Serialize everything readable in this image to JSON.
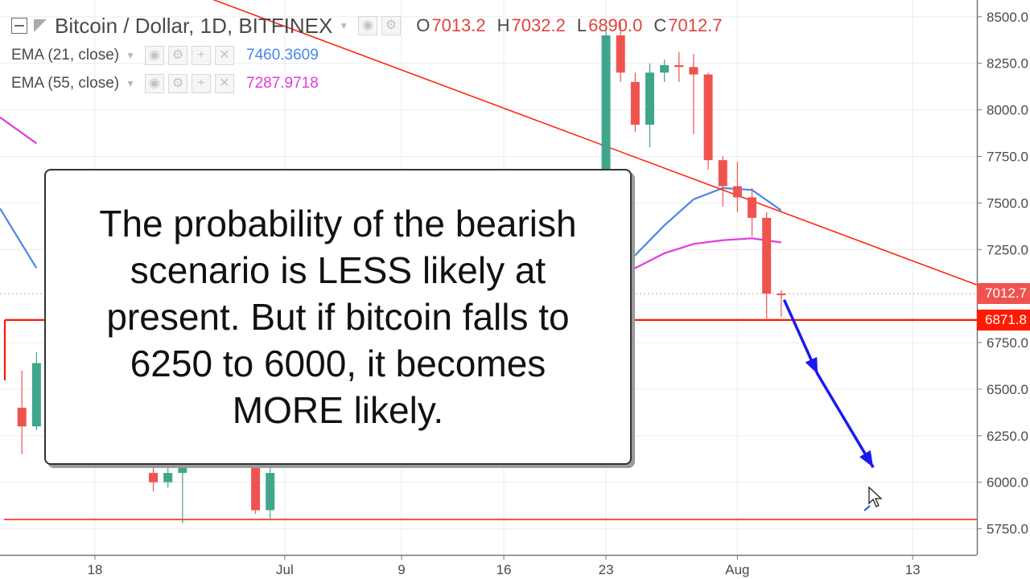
{
  "header": {
    "symbol_title": "Bitcoin / Dollar, 1D, BITFINEX",
    "ohlc": [
      {
        "label": "O",
        "value": "7013.2"
      },
      {
        "label": "H",
        "value": "7032.2"
      },
      {
        "label": "L",
        "value": "6890.0"
      },
      {
        "label": "C",
        "value": "7012.7"
      }
    ],
    "indicators": [
      {
        "name": "EMA (21, close)",
        "value": "7460.3609",
        "color": "#4a86e8"
      },
      {
        "name": "EMA (55, close)",
        "value": "7287.9718",
        "color": "#e23ae0"
      }
    ]
  },
  "callout": {
    "text": "The probability of the bearish scenario is LESS likely at present.  But if bitcoin falls to 6250 to 6000, it becomes MORE likely."
  },
  "price_tags": [
    {
      "text": "7012.7",
      "value": 7012.7,
      "color": "#ef5350"
    },
    {
      "text": "6871.8",
      "value": 6871.8,
      "color": "#ff1a00"
    }
  ],
  "chart_data": {
    "type": "candlestick",
    "y_ticks": [
      {
        "value": 8500,
        "label": "8500.0"
      },
      {
        "value": 8250,
        "label": "8250.0"
      },
      {
        "value": 8000,
        "label": "8000.0"
      },
      {
        "value": 7750,
        "label": "7750.0"
      },
      {
        "value": 7500,
        "label": "7500.0"
      },
      {
        "value": 7250,
        "label": "7250.0"
      },
      {
        "value": 6750,
        "label": "6750.0"
      },
      {
        "value": 6500,
        "label": "6500.0"
      },
      {
        "value": 6250,
        "label": "6250.0"
      },
      {
        "value": 6000,
        "label": "6000.0"
      },
      {
        "value": 5750,
        "label": "5750.0"
      }
    ],
    "x_ticks": [
      {
        "day": 18,
        "label": "18"
      },
      {
        "day": 31,
        "label": "Jul"
      },
      {
        "day": 39,
        "label": "9"
      },
      {
        "day": 46,
        "label": "16"
      },
      {
        "day": 53,
        "label": "23"
      },
      {
        "day": 62,
        "label": "Aug"
      },
      {
        "day": 74,
        "label": "13"
      }
    ],
    "x_axis_note": "day index counted from June 1 (June 18 = 18, July 1 = 31, Aug 1 = 62)",
    "ylim": [
      5610,
      8590
    ],
    "xlim": [
      11.5,
      78.4
    ],
    "colors": {
      "up": "#3fa68b",
      "down": "#ef5350",
      "trendline": "#ff2a14",
      "support": "#ff1a00",
      "forecast_arrow": "#1a1aef",
      "grid": "#ececec"
    },
    "candles": [
      {
        "day": 13,
        "open": 6400,
        "high": 6600,
        "low": 6150,
        "close": 6300
      },
      {
        "day": 14,
        "open": 6300,
        "high": 6700,
        "low": 6280,
        "close": 6640
      },
      {
        "day": 22,
        "open": 6050,
        "high": 6150,
        "low": 5950,
        "close": 6000
      },
      {
        "day": 23,
        "open": 6000,
        "high": 6100,
        "low": 5970,
        "close": 6050
      },
      {
        "day": 24,
        "open": 6050,
        "high": 6150,
        "low": 5780,
        "close": 6080
      },
      {
        "day": 29,
        "open": 6080,
        "high": 6120,
        "low": 5830,
        "close": 5850
      },
      {
        "day": 30,
        "open": 5850,
        "high": 6100,
        "low": 5800,
        "close": 6050
      },
      {
        "day": 53,
        "open": 7400,
        "high": 8450,
        "low": 7350,
        "close": 8400
      },
      {
        "day": 54,
        "open": 8400,
        "high": 8470,
        "low": 8150,
        "close": 8200
      },
      {
        "day": 55,
        "open": 8150,
        "high": 8200,
        "low": 7880,
        "close": 7920
      },
      {
        "day": 56,
        "open": 7920,
        "high": 8250,
        "low": 7800,
        "close": 8200
      },
      {
        "day": 57,
        "open": 8200,
        "high": 8270,
        "low": 8150,
        "close": 8240
      },
      {
        "day": 58,
        "open": 8240,
        "high": 8310,
        "low": 8150,
        "close": 8230
      },
      {
        "day": 59,
        "open": 8230,
        "high": 8300,
        "low": 7870,
        "close": 8190
      },
      {
        "day": 60,
        "open": 8190,
        "high": 8200,
        "low": 7680,
        "close": 7730
      },
      {
        "day": 61,
        "open": 7730,
        "high": 7750,
        "low": 7480,
        "close": 7590
      },
      {
        "day": 62,
        "open": 7590,
        "high": 7720,
        "low": 7450,
        "close": 7530
      },
      {
        "day": 63,
        "open": 7530,
        "high": 7580,
        "low": 7320,
        "close": 7420
      },
      {
        "day": 64,
        "open": 7420,
        "high": 7450,
        "low": 6880,
        "close": 7013
      },
      {
        "day": 65,
        "open": 7013.2,
        "high": 7032.2,
        "low": 6890.0,
        "close": 7012.7
      }
    ],
    "series": [
      {
        "name": "EMA (21, close)",
        "color": "#4a86e8",
        "points": [
          {
            "day": 11.5,
            "value": 7470
          },
          {
            "day": 14,
            "value": 7150
          },
          {
            "day": 53,
            "value": 7040
          },
          {
            "day": 55,
            "value": 7220
          },
          {
            "day": 57,
            "value": 7380
          },
          {
            "day": 59,
            "value": 7520
          },
          {
            "day": 61,
            "value": 7580
          },
          {
            "day": 63,
            "value": 7570
          },
          {
            "day": 65,
            "value": 7460
          }
        ]
      },
      {
        "name": "EMA (55, close)",
        "color": "#e23ae0",
        "points": [
          {
            "day": 11.5,
            "value": 7960
          },
          {
            "day": 14,
            "value": 7820
          },
          {
            "day": 53,
            "value": 7060
          },
          {
            "day": 55,
            "value": 7150
          },
          {
            "day": 57,
            "value": 7230
          },
          {
            "day": 59,
            "value": 7280
          },
          {
            "day": 61,
            "value": 7300
          },
          {
            "day": 63,
            "value": 7310
          },
          {
            "day": 65,
            "value": 7288
          }
        ]
      }
    ],
    "drawings": {
      "trendline": [
        {
          "day": 19,
          "value": 8800
        },
        {
          "day": 78.4,
          "value": 7060
        }
      ],
      "support_line": {
        "value": 5800
      },
      "horizontal_line": {
        "value": 6871.8
      },
      "forecast_arrow": [
        {
          "day": 65.2,
          "value": 6980
        },
        {
          "day": 67.5,
          "value": 6580
        },
        {
          "day": 71.3,
          "value": 6080
        }
      ]
    }
  }
}
